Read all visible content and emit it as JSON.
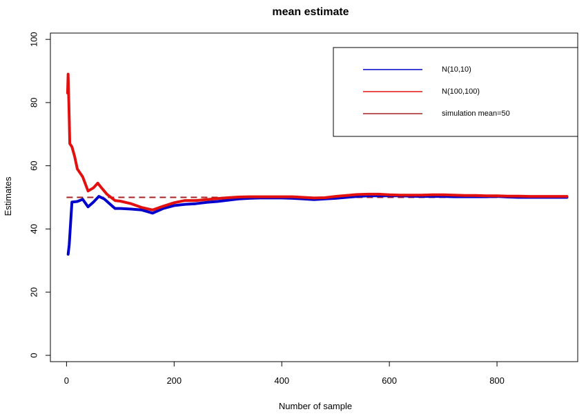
{
  "chart_data": {
    "type": "line",
    "title": "mean estimate",
    "xlabel": "Number of sample",
    "ylabel": "Estimates",
    "xlim": [
      -30,
      950
    ],
    "ylim": [
      -2,
      102
    ],
    "x_ticks": [
      0,
      200,
      400,
      600,
      800
    ],
    "x_tick_labels": [
      "0",
      "200",
      "400",
      "600",
      "800"
    ],
    "y_ticks": [
      0,
      20,
      40,
      60,
      80,
      100
    ],
    "y_tick_labels": [
      "0",
      "20",
      "40",
      "60",
      "80",
      "100"
    ],
    "grid": false,
    "legend_position": "top-right",
    "series": [
      {
        "name": "N(10,10)",
        "color": "#0000cc",
        "style": "solid",
        "x": [
          3,
          5,
          10,
          20,
          30,
          40,
          50,
          60,
          70,
          80,
          90,
          100,
          120,
          140,
          160,
          180,
          200,
          220,
          240,
          260,
          280,
          300,
          320,
          340,
          360,
          380,
          400,
          420,
          440,
          460,
          480,
          500,
          520,
          540,
          560,
          580,
          600,
          620,
          640,
          660,
          680,
          700,
          720,
          740,
          760,
          780,
          800,
          820,
          840,
          860,
          880,
          900,
          930
        ],
        "y": [
          32,
          35,
          48.5,
          48.7,
          49.4,
          47,
          48.5,
          50.3,
          49.5,
          48,
          46.5,
          46.5,
          46.3,
          46,
          45,
          46.5,
          47.4,
          47.8,
          48,
          48.4,
          48.7,
          49.1,
          49.5,
          49.7,
          49.8,
          49.8,
          49.8,
          49.7,
          49.5,
          49.3,
          49.5,
          49.7,
          50,
          50.3,
          50.5,
          50.5,
          50.5,
          50.5,
          50.4,
          50.3,
          50.3,
          50.3,
          50.2,
          50.2,
          50.2,
          50.2,
          50.3,
          50.1,
          50,
          50,
          50,
          50,
          50
        ]
      },
      {
        "name": "N(100,100)",
        "color": "#e31010",
        "style": "solid",
        "x": [
          2,
          3,
          5,
          6,
          10,
          15,
          20,
          30,
          40,
          50,
          58,
          65,
          75,
          90,
          100,
          120,
          140,
          160,
          180,
          200,
          220,
          240,
          260,
          280,
          300,
          320,
          340,
          360,
          380,
          400,
          420,
          440,
          460,
          480,
          500,
          520,
          540,
          560,
          580,
          600,
          620,
          640,
          660,
          680,
          700,
          720,
          740,
          760,
          780,
          800,
          820,
          840,
          860,
          880,
          900,
          930
        ],
        "y": [
          83,
          89,
          75,
          67,
          66,
          63,
          59,
          56.5,
          52,
          53,
          54.5,
          53,
          51,
          49,
          48.8,
          48,
          46.8,
          46,
          47.2,
          48.3,
          49,
          49,
          49.3,
          49.6,
          49.9,
          50.1,
          50.2,
          50.2,
          50.2,
          50.2,
          50.2,
          50,
          49.8,
          49.9,
          50.3,
          50.6,
          50.9,
          51,
          51,
          50.8,
          50.7,
          50.7,
          50.7,
          50.8,
          50.8,
          50.7,
          50.6,
          50.6,
          50.5,
          50.5,
          50.4,
          50.4,
          50.3,
          50.3,
          50.3,
          50.3
        ]
      },
      {
        "name": "simulation mean=50",
        "color": "#a52020",
        "style": "dashed",
        "x": [
          0,
          930
        ],
        "y": [
          50,
          50
        ]
      }
    ]
  }
}
